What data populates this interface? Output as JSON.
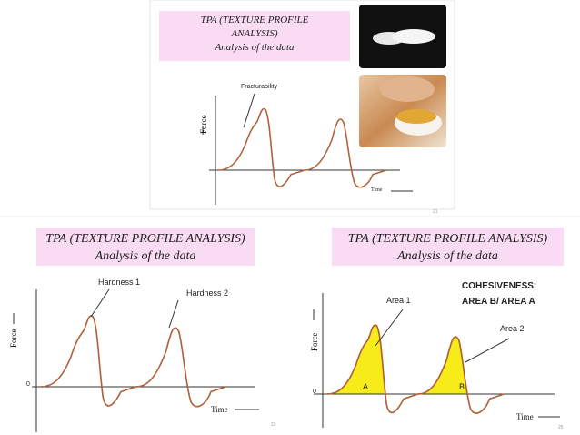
{
  "slides": [
    {
      "title": "TPA (TEXTURE PROFILE ANALYSIS)",
      "subtitle": "Analysis of the data",
      "y_label": "Force",
      "x_label": "Time",
      "labels": [
        "Fracturability"
      ],
      "page": "21"
    },
    {
      "title": "TPA (TEXTURE PROFILE ANALYSIS)",
      "subtitle": "Analysis of the data",
      "y_label": "Force",
      "x_label": "Time",
      "origin": "0",
      "labels": [
        "Hardness 1",
        "Hardness 2"
      ],
      "page": "23"
    },
    {
      "title": "TPA (TEXTURE PROFILE ANALYSIS)",
      "subtitle": "Analysis of the data",
      "y_label": "Force",
      "x_label": "Time",
      "origin": "0",
      "labels": [
        "Area 1",
        "Area 2",
        "A",
        "B"
      ],
      "note": [
        "COHESIVENESS:",
        "AREA B/ AREA A"
      ],
      "page": "25"
    }
  ]
}
